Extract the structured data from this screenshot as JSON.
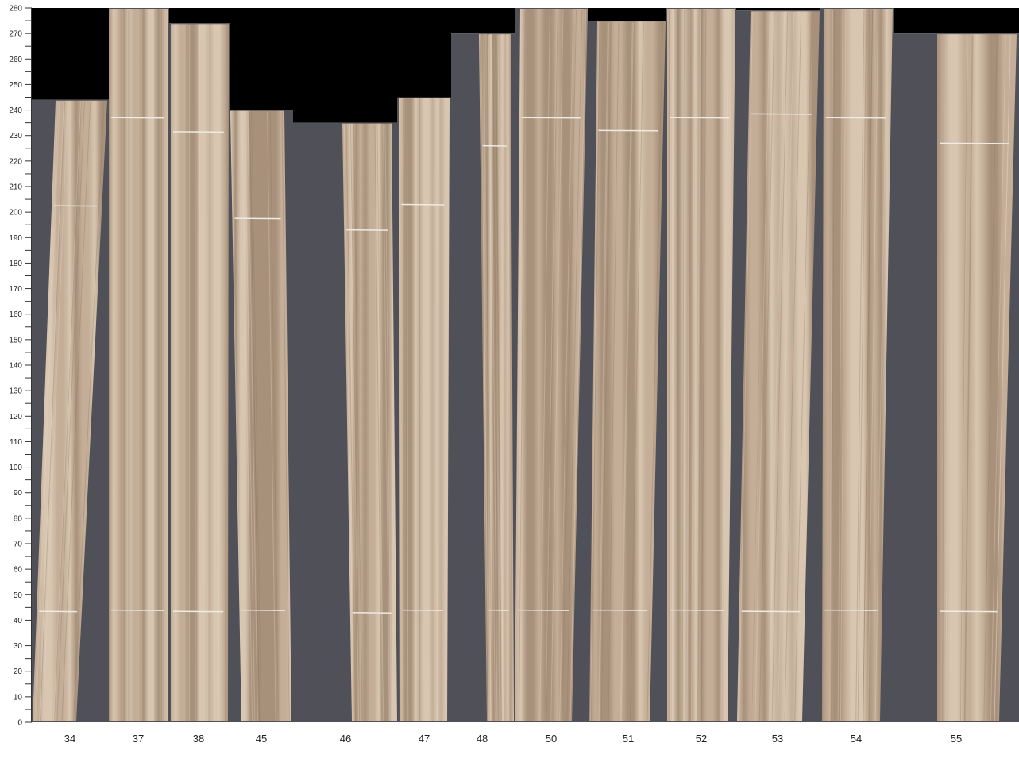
{
  "chart_data": {
    "type": "bar",
    "title": "",
    "xlabel": "",
    "ylabel": "",
    "ylim": [
      0,
      280
    ],
    "y_ticks": [
      0,
      10,
      20,
      30,
      40,
      50,
      60,
      70,
      80,
      90,
      100,
      110,
      120,
      130,
      140,
      150,
      160,
      170,
      180,
      190,
      200,
      210,
      220,
      230,
      240,
      250,
      260,
      270,
      280
    ],
    "categories": [
      "34",
      "37",
      "38",
      "45",
      "46",
      "47",
      "48",
      "50",
      "51",
      "52",
      "53",
      "54",
      "55"
    ],
    "values": [
      244,
      280,
      274,
      240,
      235,
      245,
      270,
      280,
      275,
      280,
      279,
      280,
      270
    ],
    "marker_upper": [
      202.5,
      237,
      231.5,
      197.5,
      193,
      203,
      226,
      237,
      232,
      237,
      238.5,
      237,
      227
    ],
    "marker_lower": [
      43.5,
      44,
      43.5,
      44,
      43,
      44,
      44,
      44,
      44,
      44,
      43.5,
      44,
      43.5
    ],
    "grid": false,
    "colors": {
      "panel": "#4f5058",
      "empty": "#000000",
      "wood_light": "#d9c6b0",
      "wood_dark": "#a8917a",
      "marker": "#eeeae4"
    }
  }
}
